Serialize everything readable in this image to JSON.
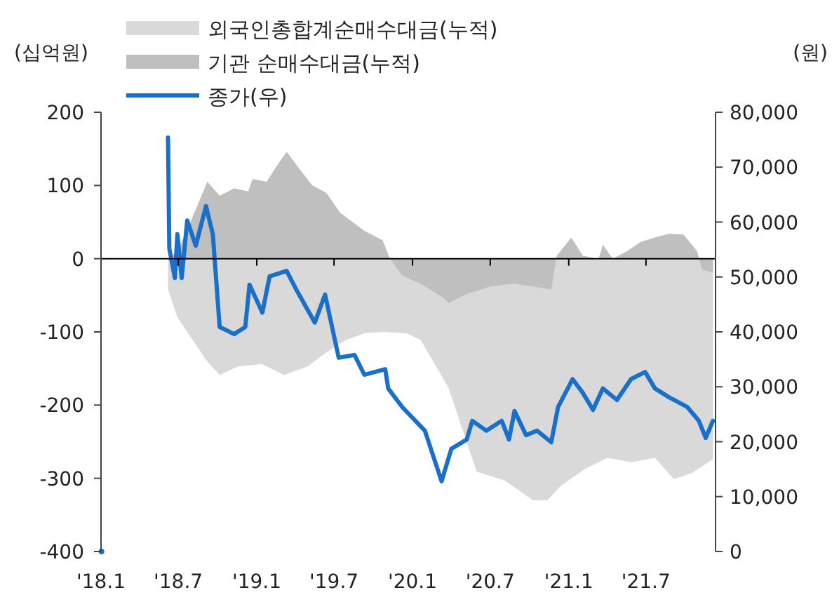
{
  "chart_data": {
    "type": "area",
    "ylabel": "(십억원)",
    "y2label": "(원)",
    "legend": "top left",
    "marker": "none",
    "line_style": "solid",
    "xlim": [
      "2018-01-01",
      "2021-12-11"
    ],
    "xticks": [
      {
        "value": "2018-01-01",
        "label": "'18.1"
      },
      {
        "value": "2018-07-01",
        "label": "'18.7"
      },
      {
        "value": "2019-01-01",
        "label": "'19.1"
      },
      {
        "value": "2019-07-01",
        "label": "'19.7"
      },
      {
        "value": "2020-01-01",
        "label": "'20.1"
      },
      {
        "value": "2020-07-01",
        "label": "'20.7"
      },
      {
        "value": "2021-01-01",
        "label": "'21.1"
      },
      {
        "value": "2021-07-01",
        "label": "'21.7"
      }
    ],
    "ylim": [
      -400,
      200
    ],
    "yticks": [
      -400,
      -300,
      -200,
      -100,
      0,
      100,
      200
    ],
    "y2lim": [
      0,
      80000
    ],
    "y2ticks": [
      {
        "value": 0,
        "label": "0"
      },
      {
        "value": 10000,
        "label": "10,000"
      },
      {
        "value": 20000,
        "label": "20,000"
      },
      {
        "value": 30000,
        "label": "30,000"
      },
      {
        "value": 40000,
        "label": "40,000"
      },
      {
        "value": 50000,
        "label": "50,000"
      },
      {
        "value": 60000,
        "label": "60,000"
      },
      {
        "value": 70000,
        "label": "70,000"
      },
      {
        "value": 80000,
        "label": "80,000"
      }
    ],
    "series": [
      {
        "name": "외국인총합계순매수대금(누적)",
        "color": "#d9d9d9",
        "x": [
          "2018-06-07",
          "2018-06-29",
          "2018-09-04",
          "2018-10-06",
          "2018-11-19",
          "2019-01-14",
          "2019-03-06",
          "2019-05-01",
          "2019-06-13",
          "2019-07-29",
          "2019-09-10",
          "2019-10-23",
          "2019-12-18",
          "2020-01-20",
          "2020-03-25",
          "2020-05-30",
          "2020-08-04",
          "2020-10-09",
          "2020-11-12",
          "2020-12-14",
          "2021-02-09",
          "2021-04-01",
          "2021-05-27",
          "2021-07-22",
          "2021-09-04",
          "2021-10-16",
          "2021-12-05"
        ],
        "values": [
          -42,
          -80,
          -138,
          -159,
          -147,
          -144,
          -159,
          -147,
          -128,
          -111,
          -102,
          -100,
          -102,
          -111,
          -176,
          -291,
          -303,
          -330,
          -330,
          -310,
          -287,
          -272,
          -278,
          -272,
          -301,
          -293,
          -274
        ]
      },
      {
        "name": "기관 순매수대금(누적)",
        "color": "#bfbfbf",
        "x": [
          "2018-06-07",
          "2018-06-29",
          "2018-08-11",
          "2018-09-07",
          "2018-10-06",
          "2018-11-09",
          "2018-12-12",
          "2018-12-22",
          "2019-01-24",
          "2019-02-15",
          "2019-03-12",
          "2019-04-08",
          "2019-05-11",
          "2019-06-13",
          "2019-07-15",
          "2019-09-10",
          "2019-10-23",
          "2019-11-09",
          "2019-12-08",
          "2020-01-20",
          "2020-03-15",
          "2020-03-25",
          "2020-05-07",
          "2020-07-02",
          "2020-08-27",
          "2020-11-21",
          "2020-12-04",
          "2021-01-07",
          "2021-02-03",
          "2021-03-12",
          "2021-03-22",
          "2021-04-14",
          "2021-05-17",
          "2021-06-19",
          "2021-07-22",
          "2021-08-24",
          "2021-09-27",
          "2021-10-29",
          "2021-11-09",
          "2021-12-05"
        ],
        "values": [
          0,
          10,
          67,
          105,
          86,
          96,
          92,
          109,
          105,
          125,
          146,
          125,
          100,
          90,
          63,
          38,
          25,
          0,
          -23,
          -34,
          -54,
          -61,
          -48,
          -38,
          -34,
          -42,
          4,
          29,
          4,
          0,
          19,
          0,
          10,
          23,
          29,
          34,
          33,
          10,
          -15,
          -19
        ]
      },
      {
        "name": "종가(우)",
        "type": "line",
        "axis": "y2",
        "color": "#1a6fc9",
        "x": [
          "2018-01-02",
          "2018-03-01",
          "2018-06-07",
          "2018-06-10",
          "2018-06-23",
          "2018-06-29",
          "2018-07-09",
          "2018-07-22",
          "2018-08-11",
          "2018-09-04",
          "2018-09-20",
          "2018-10-06",
          "2018-11-09",
          "2018-12-05",
          "2018-12-15",
          "2019-01-14",
          "2019-01-31",
          "2019-03-12",
          "2019-04-05",
          "2019-05-17",
          "2019-06-10",
          "2019-07-12",
          "2019-08-18",
          "2019-09-10",
          "2019-10-29",
          "2019-11-05",
          "2019-12-08",
          "2020-01-30",
          "2020-03-09",
          "2020-04-01",
          "2020-05-07",
          "2020-05-20",
          "2020-06-22",
          "2020-07-28",
          "2020-08-14",
          "2020-08-27",
          "2020-09-23",
          "2020-10-19",
          "2020-11-21",
          "2020-12-07",
          "2021-01-10",
          "2021-02-03",
          "2021-02-27",
          "2021-03-22",
          "2021-04-24",
          "2021-05-27",
          "2021-06-29",
          "2021-07-22",
          "2021-08-24",
          "2021-10-06",
          "2021-11-02",
          "2021-11-18",
          "2021-12-05"
        ],
        "values": [
          0,
          null,
          75400,
          55200,
          49800,
          57800,
          49800,
          60300,
          55700,
          62900,
          57800,
          40900,
          39600,
          40900,
          48600,
          43500,
          50100,
          51100,
          47500,
          41700,
          46800,
          35300,
          35800,
          32200,
          33200,
          29700,
          26300,
          22000,
          12800,
          18700,
          20400,
          23800,
          22000,
          23800,
          20400,
          25600,
          21200,
          22000,
          19900,
          26300,
          31400,
          28900,
          25800,
          29700,
          27600,
          31400,
          32700,
          29700,
          28100,
          26300,
          23800,
          20700,
          23800
        ]
      }
    ]
  }
}
